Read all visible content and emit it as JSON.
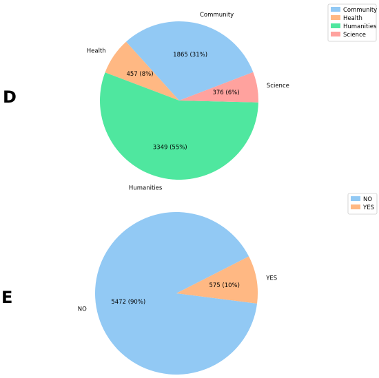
{
  "panels": [
    {
      "letter": "D",
      "chart_data": {
        "type": "pie",
        "categories": [
          "Community",
          "Health",
          "Humanities",
          "Science"
        ],
        "values": [
          1865,
          457,
          3349,
          376
        ],
        "percent_labels": [
          "1865 (31%)",
          "457 (8%)",
          "3349 (55%)",
          "376 (6%)"
        ],
        "legend": [
          "Community",
          "Health",
          "Humanities",
          "Science"
        ],
        "legend_placement": "top-right",
        "colors": [
          "#92c9f4",
          "#ffb883",
          "#4fe79f",
          "#ffa29e"
        ]
      }
    },
    {
      "letter": "E",
      "chart_data": {
        "type": "pie",
        "categories": [
          "NO",
          "YES"
        ],
        "values": [
          5472,
          575
        ],
        "percent_labels": [
          "5472 (90%)",
          "575 (10%)"
        ],
        "legend": [
          "NO",
          "YES"
        ],
        "legend_placement": "top-right",
        "colors": [
          "#92c9f4",
          "#ffb883"
        ]
      }
    }
  ]
}
